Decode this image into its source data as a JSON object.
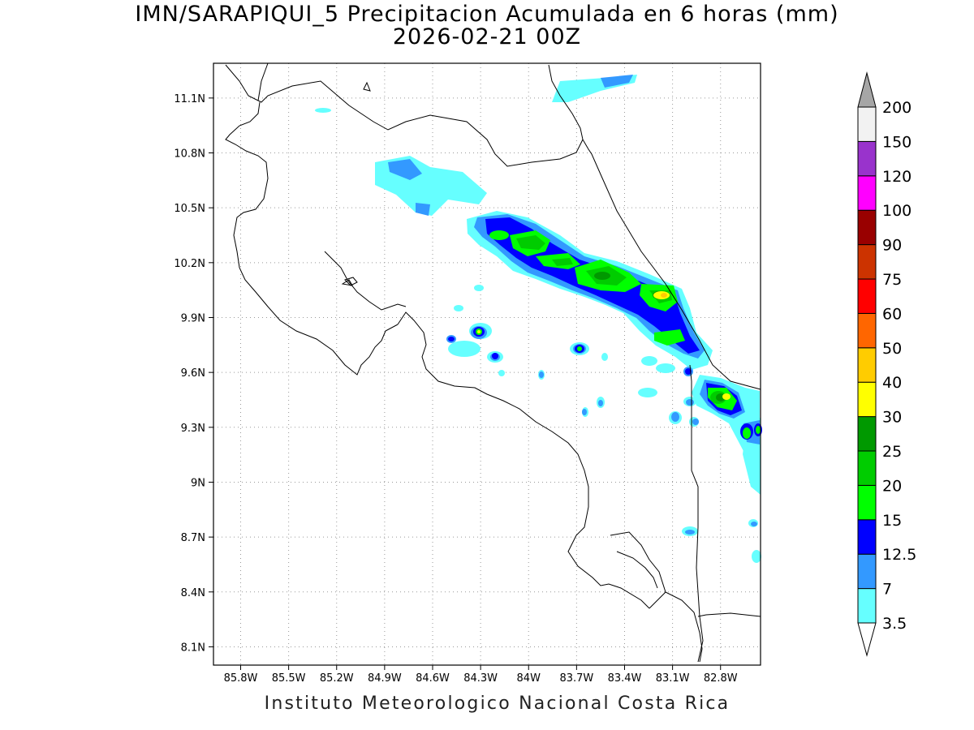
{
  "title": {
    "line1": "IMN/SARAPIQUI_5 Precipitacion Acumulada en 6 horas (mm)",
    "line2": "2026-02-21 00Z"
  },
  "footer": "Instituto Meteorologico Nacional Costa Rica",
  "map": {
    "lon_range": [
      -85.97,
      -82.55
    ],
    "lat_range": [
      8.0,
      11.29
    ],
    "x_ticks": [
      "85.8W",
      "85.5W",
      "85.2W",
      "84.9W",
      "84.6W",
      "84.3W",
      "84W",
      "83.7W",
      "83.4W",
      "83.1W",
      "82.8W"
    ],
    "y_ticks": [
      "11.1N",
      "10.8N",
      "10.5N",
      "10.2N",
      "9.9N",
      "9.6N",
      "9.3N",
      "9N",
      "8.7N",
      "8.4N",
      "8.1N"
    ]
  },
  "colorbar": {
    "labels": [
      "3.5",
      "7",
      "12.5",
      "15",
      "20",
      "25",
      "30",
      "40",
      "50",
      "60",
      "75",
      "90",
      "100",
      "120",
      "150",
      "200"
    ],
    "colors": [
      "#ffffff",
      "#66ffff",
      "#3399ff",
      "#0000ff",
      "#00ff00",
      "#00cc00",
      "#009900",
      "#ffff00",
      "#ffcc00",
      "#ff6600",
      "#ff0000",
      "#cc3300",
      "#990000",
      "#ff00ff",
      "#9933cc",
      "#f2f2f2",
      "#a6a6a6"
    ]
  }
}
